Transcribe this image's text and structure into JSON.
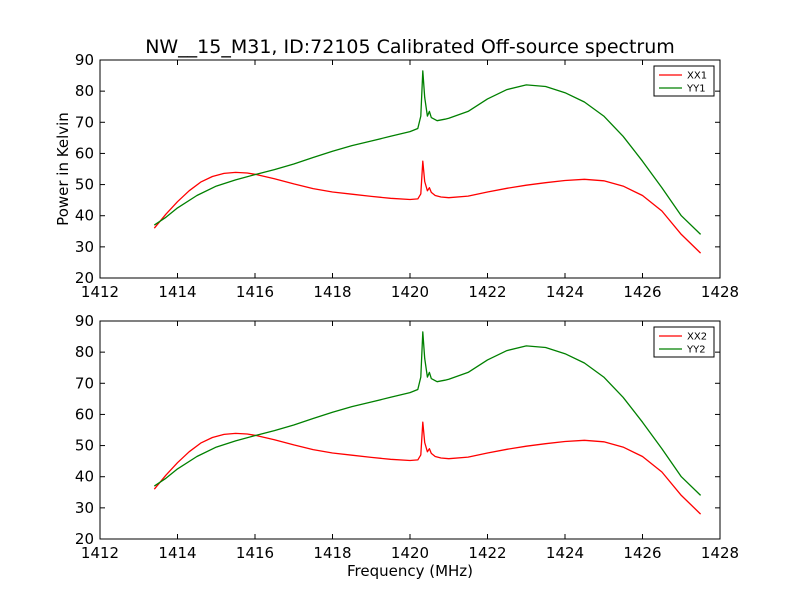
{
  "figure": {
    "title": "NW__15_M31, ID:72105 Calibrated Off-source spectrum"
  },
  "colors": {
    "xx": "#ff0000",
    "yy": "#008000",
    "axes": "#000000",
    "background": "#ffffff"
  },
  "chart_data": [
    {
      "type": "line",
      "xlabel": "",
      "ylabel": "Power in Kelvin",
      "xlim": [
        1412,
        1428
      ],
      "ylim": [
        20,
        90
      ],
      "xticks": [
        1412,
        1414,
        1416,
        1418,
        1420,
        1422,
        1424,
        1426,
        1428
      ],
      "yticks": [
        20,
        30,
        40,
        50,
        60,
        70,
        80,
        90
      ],
      "grid": false,
      "legend_position": "top-right",
      "series": [
        {
          "name": "XX1",
          "color": "#ff0000",
          "points": [
            [
              1413.4,
              36
            ],
            [
              1413.7,
              40.5
            ],
            [
              1414.0,
              44.5
            ],
            [
              1414.3,
              48
            ],
            [
              1414.6,
              50.8
            ],
            [
              1414.9,
              52.6
            ],
            [
              1415.2,
              53.6
            ],
            [
              1415.5,
              53.9
            ],
            [
              1415.8,
              53.7
            ],
            [
              1416.0,
              53.3
            ],
            [
              1416.5,
              51.9
            ],
            [
              1417.0,
              50.2
            ],
            [
              1417.5,
              48.7
            ],
            [
              1418.0,
              47.6
            ],
            [
              1418.5,
              46.9
            ],
            [
              1419.0,
              46.2
            ],
            [
              1419.5,
              45.6
            ],
            [
              1420.0,
              45.2
            ],
            [
              1420.2,
              45.4
            ],
            [
              1420.28,
              47
            ],
            [
              1420.33,
              57.5
            ],
            [
              1420.38,
              51
            ],
            [
              1420.45,
              48
            ],
            [
              1420.5,
              49
            ],
            [
              1420.55,
              47.5
            ],
            [
              1420.65,
              46.5
            ],
            [
              1420.8,
              46
            ],
            [
              1421.0,
              45.8
            ],
            [
              1421.5,
              46.3
            ],
            [
              1422.0,
              47.6
            ],
            [
              1422.5,
              48.8
            ],
            [
              1423.0,
              49.8
            ],
            [
              1423.5,
              50.6
            ],
            [
              1424.0,
              51.3
            ],
            [
              1424.5,
              51.7
            ],
            [
              1425.0,
              51.2
            ],
            [
              1425.5,
              49.5
            ],
            [
              1426.0,
              46.5
            ],
            [
              1426.5,
              41.5
            ],
            [
              1427.0,
              34
            ],
            [
              1427.5,
              28
            ]
          ]
        },
        {
          "name": "YY1",
          "color": "#008000",
          "points": [
            [
              1413.4,
              37
            ],
            [
              1413.7,
              39.5
            ],
            [
              1414.0,
              42.5
            ],
            [
              1414.5,
              46.5
            ],
            [
              1415.0,
              49.5
            ],
            [
              1415.5,
              51.5
            ],
            [
              1416.0,
              53.2
            ],
            [
              1416.5,
              54.8
            ],
            [
              1417.0,
              56.6
            ],
            [
              1417.5,
              58.7
            ],
            [
              1418.0,
              60.7
            ],
            [
              1418.5,
              62.5
            ],
            [
              1419.0,
              64
            ],
            [
              1419.5,
              65.5
            ],
            [
              1420.0,
              67
            ],
            [
              1420.2,
              68
            ],
            [
              1420.28,
              72
            ],
            [
              1420.33,
              86.5
            ],
            [
              1420.38,
              78
            ],
            [
              1420.45,
              72
            ],
            [
              1420.5,
              73.5
            ],
            [
              1420.55,
              71.5
            ],
            [
              1420.7,
              70.5
            ],
            [
              1420.9,
              71
            ],
            [
              1421.0,
              71.3
            ],
            [
              1421.5,
              73.5
            ],
            [
              1422.0,
              77.5
            ],
            [
              1422.5,
              80.5
            ],
            [
              1423.0,
              82
            ],
            [
              1423.5,
              81.5
            ],
            [
              1424.0,
              79.5
            ],
            [
              1424.5,
              76.5
            ],
            [
              1425.0,
              72
            ],
            [
              1425.5,
              65.5
            ],
            [
              1426.0,
              57.5
            ],
            [
              1426.5,
              49
            ],
            [
              1427.0,
              40
            ],
            [
              1427.5,
              34
            ]
          ]
        }
      ]
    },
    {
      "type": "line",
      "xlabel": "Frequency (MHz)",
      "ylabel": "",
      "xlim": [
        1412,
        1428
      ],
      "ylim": [
        20,
        90
      ],
      "xticks": [
        1412,
        1414,
        1416,
        1418,
        1420,
        1422,
        1424,
        1426,
        1428
      ],
      "yticks": [
        20,
        30,
        40,
        50,
        60,
        70,
        80,
        90
      ],
      "grid": false,
      "legend_position": "top-right",
      "series": [
        {
          "name": "XX2",
          "color": "#ff0000",
          "points": [
            [
              1413.4,
              36
            ],
            [
              1413.7,
              40.5
            ],
            [
              1414.0,
              44.5
            ],
            [
              1414.3,
              48
            ],
            [
              1414.6,
              50.8
            ],
            [
              1414.9,
              52.6
            ],
            [
              1415.2,
              53.6
            ],
            [
              1415.5,
              53.9
            ],
            [
              1415.8,
              53.7
            ],
            [
              1416.0,
              53.3
            ],
            [
              1416.5,
              51.9
            ],
            [
              1417.0,
              50.2
            ],
            [
              1417.5,
              48.7
            ],
            [
              1418.0,
              47.6
            ],
            [
              1418.5,
              46.9
            ],
            [
              1419.0,
              46.2
            ],
            [
              1419.5,
              45.6
            ],
            [
              1420.0,
              45.2
            ],
            [
              1420.2,
              45.4
            ],
            [
              1420.28,
              47
            ],
            [
              1420.33,
              57.5
            ],
            [
              1420.38,
              51
            ],
            [
              1420.45,
              48
            ],
            [
              1420.5,
              49
            ],
            [
              1420.55,
              47.5
            ],
            [
              1420.65,
              46.5
            ],
            [
              1420.8,
              46
            ],
            [
              1421.0,
              45.8
            ],
            [
              1421.5,
              46.3
            ],
            [
              1422.0,
              47.6
            ],
            [
              1422.5,
              48.8
            ],
            [
              1423.0,
              49.8
            ],
            [
              1423.5,
              50.6
            ],
            [
              1424.0,
              51.3
            ],
            [
              1424.5,
              51.7
            ],
            [
              1425.0,
              51.2
            ],
            [
              1425.5,
              49.5
            ],
            [
              1426.0,
              46.5
            ],
            [
              1426.5,
              41.5
            ],
            [
              1427.0,
              34
            ],
            [
              1427.5,
              28
            ]
          ]
        },
        {
          "name": "YY2",
          "color": "#008000",
          "points": [
            [
              1413.4,
              37
            ],
            [
              1413.7,
              39.5
            ],
            [
              1414.0,
              42.5
            ],
            [
              1414.5,
              46.5
            ],
            [
              1415.0,
              49.5
            ],
            [
              1415.5,
              51.5
            ],
            [
              1416.0,
              53.2
            ],
            [
              1416.5,
              54.8
            ],
            [
              1417.0,
              56.6
            ],
            [
              1417.5,
              58.7
            ],
            [
              1418.0,
              60.7
            ],
            [
              1418.5,
              62.5
            ],
            [
              1419.0,
              64
            ],
            [
              1419.5,
              65.5
            ],
            [
              1420.0,
              67
            ],
            [
              1420.2,
              68
            ],
            [
              1420.28,
              72
            ],
            [
              1420.33,
              86.5
            ],
            [
              1420.38,
              78
            ],
            [
              1420.45,
              72
            ],
            [
              1420.5,
              73.5
            ],
            [
              1420.55,
              71.5
            ],
            [
              1420.7,
              70.5
            ],
            [
              1420.9,
              71
            ],
            [
              1421.0,
              71.3
            ],
            [
              1421.5,
              73.5
            ],
            [
              1422.0,
              77.5
            ],
            [
              1422.5,
              80.5
            ],
            [
              1423.0,
              82
            ],
            [
              1423.5,
              81.5
            ],
            [
              1424.0,
              79.5
            ],
            [
              1424.5,
              76.5
            ],
            [
              1425.0,
              72
            ],
            [
              1425.5,
              65.5
            ],
            [
              1426.0,
              57.5
            ],
            [
              1426.5,
              49
            ],
            [
              1427.0,
              40
            ],
            [
              1427.5,
              34
            ]
          ]
        }
      ]
    }
  ]
}
